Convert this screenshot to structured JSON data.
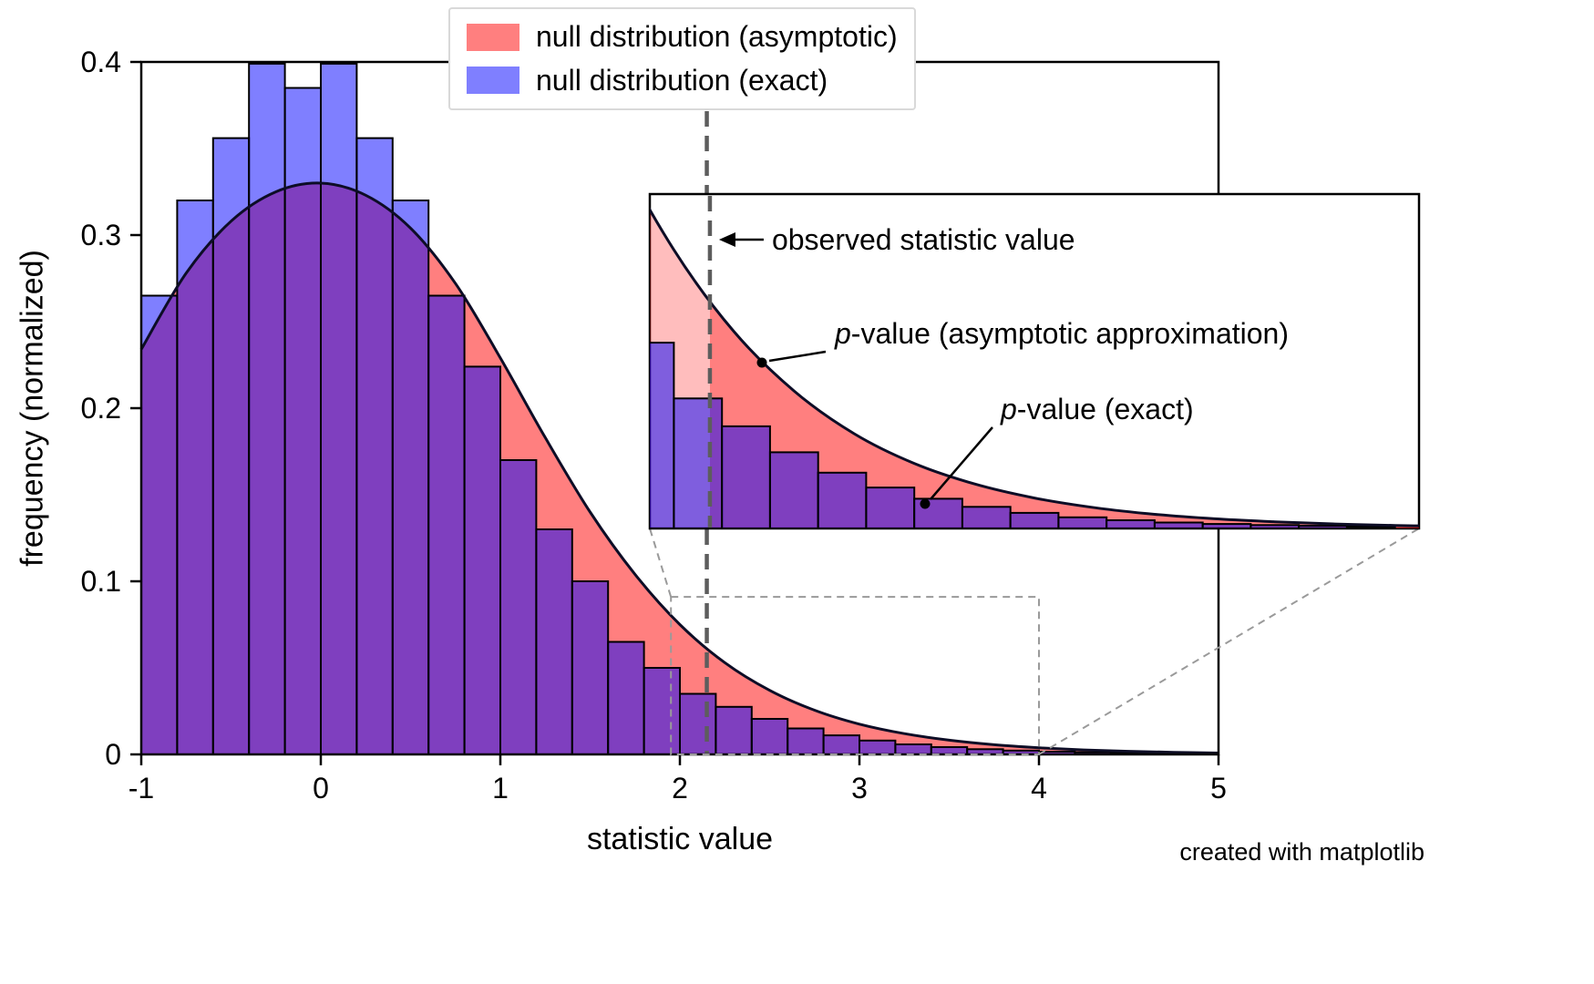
{
  "figure": {
    "background": "#ffffff",
    "watermark": "created with matplotlib"
  },
  "legend": {
    "items": [
      {
        "label": "null distribution (asymptotic)",
        "color": "rgba(255,0,0,0.5)"
      },
      {
        "label": "null distribution (exact)",
        "color": "rgba(0,0,255,0.5)"
      }
    ]
  },
  "chart_data": {
    "type": "histogram+line",
    "title": "",
    "xlabel": "statistic value",
    "ylabel": "frequency (normalized)",
    "xlim": [
      -1,
      5
    ],
    "ylim": [
      0,
      0.4
    ],
    "x_ticks": [
      -1,
      0,
      1,
      2,
      3,
      4,
      5
    ],
    "x_tick_labels": [
      "-1",
      "0",
      "1",
      "2",
      "3",
      "4",
      "5"
    ],
    "y_ticks": [
      0,
      0.1,
      0.2,
      0.3,
      0.4
    ],
    "y_tick_labels": [
      "0",
      "0.1",
      "0.2",
      "0.3",
      "0.4"
    ],
    "grid": false,
    "legend_position": "upper center",
    "observed_statistic": 2.15,
    "colors": {
      "asymptotic_fill": "rgba(255,0,0,0.5)",
      "asymptotic_fill_light": "rgba(255,0,0,0.26)",
      "exact_fill": "rgba(0,0,255,0.5)",
      "curve": "#0d0d26",
      "edge": "#000000",
      "observed_line": "#5d5d5d",
      "zoom_lines": "#9a9a9a"
    },
    "asymptotic_curve": {
      "x": [
        -1.0,
        -0.75,
        -0.5,
        -0.25,
        0.0,
        0.25,
        0.5,
        0.75,
        1.0,
        1.25,
        1.5,
        1.75,
        2.0,
        2.25,
        2.5,
        2.75,
        3.0,
        3.25,
        3.5,
        3.75,
        4.0,
        4.25,
        4.5,
        4.75,
        5.0,
        5.1
      ],
      "y": [
        0.234,
        0.278,
        0.308,
        0.325,
        0.33,
        0.323,
        0.304,
        0.272,
        0.229,
        0.183,
        0.14,
        0.104,
        0.075,
        0.053,
        0.037,
        0.0255,
        0.0175,
        0.012,
        0.0082,
        0.0056,
        0.0038,
        0.0026,
        0.0018,
        0.0012,
        0.0008,
        0.0007
      ]
    },
    "histogram": {
      "bin_start": -1.0,
      "bin_width": 0.2,
      "heights": [
        0.265,
        0.32,
        0.356,
        0.399,
        0.385,
        0.399,
        0.356,
        0.32,
        0.265,
        0.224,
        0.17,
        0.13,
        0.1,
        0.065,
        0.05,
        0.035,
        0.0275,
        0.0205,
        0.015,
        0.011,
        0.008,
        0.0058,
        0.0042,
        0.003,
        0.0022,
        0.0016,
        0.0012,
        0.0009,
        0.0007,
        0.0005
      ]
    },
    "inset": {
      "xlim": [
        1.9,
        5.1
      ],
      "ylim": [
        0,
        0.09
      ],
      "zoom_region": {
        "x": [
          1.95,
          4.0
        ],
        "y": [
          0,
          0.091
        ]
      },
      "annotations": {
        "observed": {
          "text": "observed statistic value"
        },
        "p_asymptotic": {
          "prefix": "p",
          "text": "-value (asymptotic approximation)"
        },
        "p_exact": {
          "prefix": "p",
          "text": "-value (exact)"
        }
      }
    }
  }
}
